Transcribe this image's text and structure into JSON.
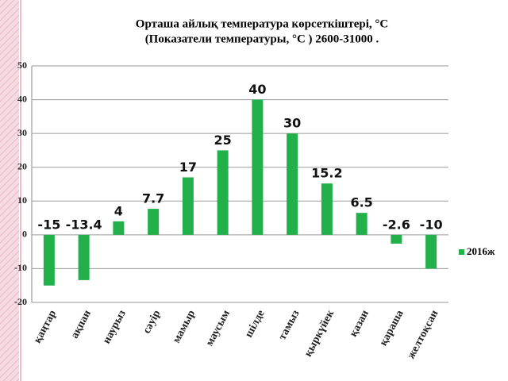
{
  "chart_data": {
    "type": "bar",
    "title": "Орташа айлық температура көрсеткіштері, °C",
    "subtitle": "(Показатели температуры, °C ) 2600-31000 .",
    "categories": [
      "қаңтар",
      "ақпан",
      "наурыз",
      "сәуір",
      "мамыр",
      "маусым",
      "шілде",
      "тамыз",
      "қыркүйек",
      "қазан",
      "қараша",
      "желтоқсан"
    ],
    "series": [
      {
        "name": "2016ж",
        "color": "#21b04a",
        "values": [
          -15,
          -13.4,
          4,
          7.7,
          17,
          25,
          40,
          30,
          15.2,
          6.5,
          -2.6,
          -10
        ]
      }
    ],
    "ylim": [
      -20,
      50
    ],
    "yticks": [
      -20,
      -10,
      0,
      10,
      20,
      30,
      40,
      50
    ],
    "grid": true,
    "legend": "right"
  }
}
